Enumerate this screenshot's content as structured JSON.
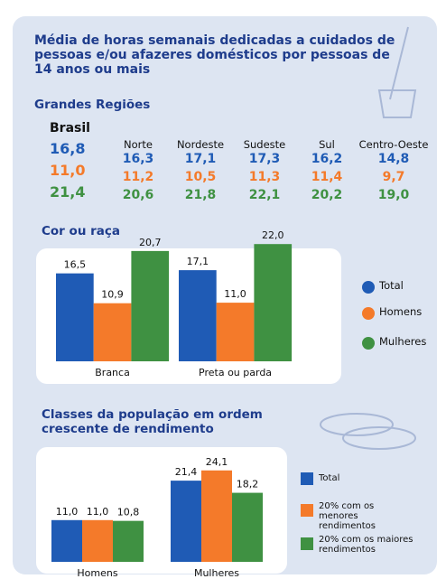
{
  "title": "Média de horas semanais dedicadas a cuidados de pessoas e/ou afazeres domésticos por pessoas de 14 anos ou mais",
  "regions": {
    "heading": "Grandes Regiões",
    "brasil": {
      "name": "Brasil",
      "values": [
        16.8,
        11.0,
        21.4
      ],
      "value_labels": [
        "16,8",
        "11,0",
        "21,4"
      ]
    },
    "items": [
      {
        "name": "Norte",
        "values": [
          16.3,
          11.2,
          20.6
        ],
        "value_labels": [
          "16,3",
          "11,2",
          "20,6"
        ]
      },
      {
        "name": "Nordeste",
        "values": [
          17.1,
          10.5,
          21.8
        ],
        "value_labels": [
          "17,1",
          "10,5",
          "21,8"
        ]
      },
      {
        "name": "Sudeste",
        "values": [
          17.3,
          11.3,
          22.1
        ],
        "value_labels": [
          "17,3",
          "11,3",
          "22,1"
        ]
      },
      {
        "name": "Sul",
        "values": [
          16.2,
          11.4,
          20.2
        ],
        "value_labels": [
          "16,2",
          "11,4",
          "20,2"
        ]
      },
      {
        "name": "Centro-Oeste",
        "values": [
          14.8,
          9.7,
          19.0
        ],
        "value_labels": [
          "14,8",
          "9,7",
          "19,0"
        ]
      }
    ]
  },
  "chart_data": [
    {
      "type": "bar",
      "title": "Cor ou raça",
      "categories": [
        "Branca",
        "Preta ou parda"
      ],
      "legend_marker": "circle",
      "series": [
        {
          "name": "Total",
          "color": "#1f5bb5",
          "values": [
            16.5,
            17.1
          ],
          "value_labels": [
            "16,5",
            "17,1"
          ]
        },
        {
          "name": "Homens",
          "color": "#f47a2a",
          "values": [
            10.9,
            11.0
          ],
          "value_labels": [
            "10,9",
            "11,0"
          ]
        },
        {
          "name": "Mulheres",
          "color": "#3f9142",
          "values": [
            20.7,
            22.0
          ],
          "value_labels": [
            "20,7",
            "22,0"
          ]
        }
      ]
    },
    {
      "type": "bar",
      "title": "Classes da população em ordem crescente de rendimento",
      "categories": [
        "Homens",
        "Mulheres"
      ],
      "legend_marker": "square",
      "series": [
        {
          "name": "Total",
          "color": "#1f5bb5",
          "values": [
            11.0,
            21.4
          ],
          "value_labels": [
            "11,0",
            "21,4"
          ]
        },
        {
          "name": "20% com os menores rendimentos",
          "color": "#f47a2a",
          "values": [
            11.0,
            24.1
          ],
          "value_labels": [
            "11,0",
            "24,1"
          ]
        },
        {
          "name": "20% com os maiores rendimentos",
          "color": "#3f9142",
          "values": [
            10.8,
            18.2
          ],
          "value_labels": [
            "10,8",
            "18,2"
          ]
        }
      ]
    }
  ]
}
